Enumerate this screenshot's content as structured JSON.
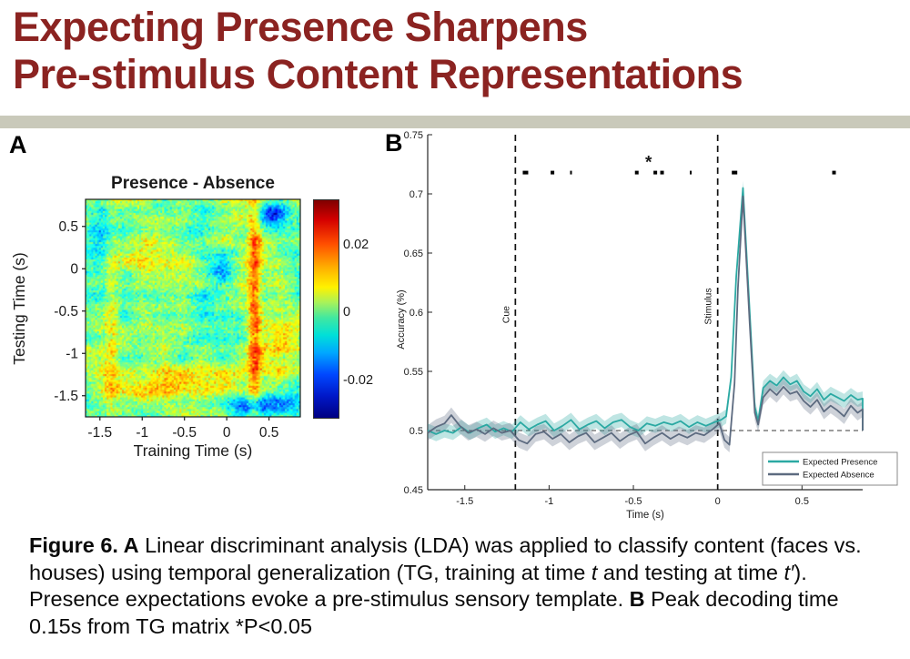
{
  "title": {
    "line1": "Expecting Presence Sharpens",
    "line2": "Pre-stimulus Content Representations",
    "color": "#8b2321"
  },
  "divider_color": "#c9c9ba",
  "panelA": {
    "label": "A"
  },
  "panelB": {
    "label": "B"
  },
  "caption": {
    "segments": [
      "Figure 6. ",
      "A",
      " Linear discriminant analysis (LDA) was applied to classify content (faces vs. houses) using temporal generalization (TG, training at time ",
      "t",
      " and testing at time ",
      "t′",
      "). Presence expectations evoke a pre-stimulus sensory template. ",
      "B",
      "  Peak decoding time 0.15s from TG matrix *P<0.05"
    ]
  },
  "chart_data": [
    {
      "type": "heatmap",
      "panel": "A",
      "title": "Presence - Absence",
      "xlabel": "Training Time (s)",
      "ylabel": "Testing Time (s)",
      "xlim": [
        -1.67,
        0.87
      ],
      "ylim": [
        -1.75,
        0.82
      ],
      "xticks": [
        -1.5,
        -1,
        -0.5,
        0,
        0.5
      ],
      "yticks": [
        0.5,
        0,
        -0.5,
        -1,
        -1.5
      ],
      "colorbar_ticks": [
        "0.02",
        "0",
        "-0.02"
      ],
      "clim": [
        -0.033,
        0.033
      ],
      "colormap": "jet",
      "description": "Noisy temporal-generalization difference matrix (Presence - Absence), mostly near zero (green/cyan) with warm yellow-orange streaks: a vertical streak near training time 0.2 s, warm horizontal bands near testing times -1.3 and 0.3, warm patch lower-right, and scattered cool blue spots (top-right and bottom).",
      "noise": {
        "seed": 42,
        "grid": 112,
        "fine_amp": 0.34,
        "coarse_amp": 0.26,
        "coarse_grid": 11,
        "banding": 0.07
      },
      "features": [
        {
          "cx": 0.79,
          "cy": 0.5,
          "sx": 0.022,
          "sy": 0.45,
          "amp": 0.75
        },
        {
          "cx": 0.45,
          "cy": 0.84,
          "sx": 0.3,
          "sy": 0.055,
          "amp": 0.45
        },
        {
          "cx": 0.33,
          "cy": 0.27,
          "sx": 0.16,
          "sy": 0.06,
          "amp": 0.35
        },
        {
          "cx": 0.9,
          "cy": 0.66,
          "sx": 0.09,
          "sy": 0.1,
          "amp": 0.45
        },
        {
          "cx": 0.88,
          "cy": 0.07,
          "sx": 0.045,
          "sy": 0.035,
          "amp": -0.9
        },
        {
          "cx": 0.8,
          "cy": 0.96,
          "sx": 0.13,
          "sy": 0.035,
          "amp": -0.6
        },
        {
          "cx": 0.12,
          "cy": 0.5,
          "sx": 0.025,
          "sy": 0.4,
          "amp": 0.3
        },
        {
          "cx": 0.55,
          "cy": 0.55,
          "sx": 0.22,
          "sy": 0.18,
          "amp": -0.18
        },
        {
          "cx": 0.06,
          "cy": 0.13,
          "sx": 0.05,
          "sy": 0.08,
          "amp": -0.35
        },
        {
          "cx": 0.63,
          "cy": 0.3,
          "sx": 0.05,
          "sy": 0.05,
          "amp": -0.35
        },
        {
          "cx": 0.95,
          "cy": 0.9,
          "sx": 0.06,
          "sy": 0.05,
          "amp": -0.5
        }
      ]
    },
    {
      "type": "line",
      "panel": "B",
      "xlabel": "Time (s)",
      "ylabel": "Accuracy (%)",
      "xlim": [
        -1.72,
        0.86
      ],
      "ylim": [
        0.45,
        0.75
      ],
      "xticks": [
        -1.5,
        -1,
        -0.5,
        0,
        0.5
      ],
      "yticks": [
        0.45,
        0.5,
        0.55,
        0.6,
        0.65,
        0.7,
        0.75
      ],
      "chance_line": 0.5,
      "events": [
        {
          "label": "Cue",
          "t": -1.2,
          "label_y": 0.598
        },
        {
          "label": "Stimulus",
          "t": 0,
          "label_y": 0.605
        }
      ],
      "sig_markers": {
        "y": 0.718,
        "marks": [
          [
            -1.14,
            6
          ],
          [
            -0.98,
            4
          ],
          [
            -0.87,
            2
          ],
          [
            -0.48,
            4
          ],
          [
            -0.37,
            4
          ],
          [
            -0.33,
            4
          ],
          [
            -0.16,
            2
          ],
          [
            0.1,
            6
          ],
          [
            0.69,
            4
          ]
        ]
      },
      "asterisk": {
        "t": -0.41,
        "y": 0.722,
        "label": "*"
      },
      "legend": {
        "position": "bottom-right",
        "entries": [
          "Expected Presence",
          "Expected Absence"
        ]
      },
      "series": [
        {
          "name": "Expected Presence",
          "color": "#2ba9a3",
          "band_color": "rgba(43,169,163,0.30)",
          "band": 0.006,
          "points": [
            [
              -1.72,
              0.5
            ],
            [
              -1.67,
              0.497
            ],
            [
              -1.62,
              0.5
            ],
            [
              -1.57,
              0.498
            ],
            [
              -1.52,
              0.503
            ],
            [
              -1.47,
              0.498
            ],
            [
              -1.42,
              0.502
            ],
            [
              -1.37,
              0.505
            ],
            [
              -1.32,
              0.499
            ],
            [
              -1.27,
              0.502
            ],
            [
              -1.22,
              0.499
            ],
            [
              -1.17,
              0.507
            ],
            [
              -1.12,
              0.501
            ],
            [
              -1.07,
              0.505
            ],
            [
              -1.02,
              0.508
            ],
            [
              -0.97,
              0.5
            ],
            [
              -0.92,
              0.504
            ],
            [
              -0.87,
              0.509
            ],
            [
              -0.82,
              0.501
            ],
            [
              -0.77,
              0.505
            ],
            [
              -0.72,
              0.508
            ],
            [
              -0.67,
              0.502
            ],
            [
              -0.62,
              0.507
            ],
            [
              -0.57,
              0.509
            ],
            [
              -0.52,
              0.503
            ],
            [
              -0.47,
              0.5
            ],
            [
              -0.42,
              0.506
            ],
            [
              -0.37,
              0.504
            ],
            [
              -0.32,
              0.507
            ],
            [
              -0.27,
              0.505
            ],
            [
              -0.22,
              0.508
            ],
            [
              -0.17,
              0.503
            ],
            [
              -0.12,
              0.507
            ],
            [
              -0.07,
              0.504
            ],
            [
              -0.02,
              0.507
            ],
            [
              0.02,
              0.509
            ],
            [
              0.05,
              0.512
            ],
            [
              0.08,
              0.545
            ],
            [
              0.11,
              0.63
            ],
            [
              0.15,
              0.705
            ],
            [
              0.19,
              0.6
            ],
            [
              0.22,
              0.52
            ],
            [
              0.24,
              0.508
            ],
            [
              0.27,
              0.536
            ],
            [
              0.31,
              0.542
            ],
            [
              0.35,
              0.538
            ],
            [
              0.39,
              0.545
            ],
            [
              0.43,
              0.539
            ],
            [
              0.47,
              0.542
            ],
            [
              0.51,
              0.533
            ],
            [
              0.55,
              0.529
            ],
            [
              0.59,
              0.535
            ],
            [
              0.63,
              0.526
            ],
            [
              0.67,
              0.531
            ],
            [
              0.71,
              0.528
            ],
            [
              0.75,
              0.525
            ],
            [
              0.79,
              0.53
            ],
            [
              0.83,
              0.526
            ],
            [
              0.86,
              0.527
            ],
            [
              0.86,
              0.5
            ]
          ]
        },
        {
          "name": "Expected Absence",
          "color": "#5d6b80",
          "band_color": "rgba(93,107,128,0.30)",
          "band": 0.0065,
          "points": [
            [
              -1.72,
              0.498
            ],
            [
              -1.67,
              0.503
            ],
            [
              -1.62,
              0.506
            ],
            [
              -1.58,
              0.513
            ],
            [
              -1.53,
              0.504
            ],
            [
              -1.48,
              0.498
            ],
            [
              -1.43,
              0.501
            ],
            [
              -1.38,
              0.497
            ],
            [
              -1.33,
              0.502
            ],
            [
              -1.28,
              0.498
            ],
            [
              -1.23,
              0.5
            ],
            [
              -1.18,
              0.492
            ],
            [
              -1.13,
              0.489
            ],
            [
              -1.08,
              0.497
            ],
            [
              -1.03,
              0.499
            ],
            [
              -0.98,
              0.493
            ],
            [
              -0.93,
              0.497
            ],
            [
              -0.88,
              0.49
            ],
            [
              -0.83,
              0.495
            ],
            [
              -0.78,
              0.498
            ],
            [
              -0.73,
              0.49
            ],
            [
              -0.68,
              0.494
            ],
            [
              -0.63,
              0.498
            ],
            [
              -0.58,
              0.491
            ],
            [
              -0.53,
              0.496
            ],
            [
              -0.48,
              0.499
            ],
            [
              -0.43,
              0.489
            ],
            [
              -0.38,
              0.494
            ],
            [
              -0.33,
              0.498
            ],
            [
              -0.28,
              0.493
            ],
            [
              -0.23,
              0.497
            ],
            [
              -0.18,
              0.494
            ],
            [
              -0.13,
              0.498
            ],
            [
              -0.08,
              0.496
            ],
            [
              -0.03,
              0.501
            ],
            [
              0.01,
              0.506
            ],
            [
              0.04,
              0.492
            ],
            [
              0.07,
              0.488
            ],
            [
              0.1,
              0.54
            ],
            [
              0.12,
              0.62
            ],
            [
              0.15,
              0.698
            ],
            [
              0.19,
              0.59
            ],
            [
              0.22,
              0.515
            ],
            [
              0.24,
              0.505
            ],
            [
              0.27,
              0.528
            ],
            [
              0.31,
              0.535
            ],
            [
              0.35,
              0.53
            ],
            [
              0.39,
              0.537
            ],
            [
              0.43,
              0.531
            ],
            [
              0.47,
              0.533
            ],
            [
              0.51,
              0.525
            ],
            [
              0.55,
              0.52
            ],
            [
              0.59,
              0.526
            ],
            [
              0.63,
              0.516
            ],
            [
              0.67,
              0.521
            ],
            [
              0.71,
              0.517
            ],
            [
              0.75,
              0.512
            ],
            [
              0.79,
              0.521
            ],
            [
              0.83,
              0.515
            ],
            [
              0.86,
              0.518
            ],
            [
              0.86,
              0.5
            ]
          ]
        }
      ]
    }
  ]
}
